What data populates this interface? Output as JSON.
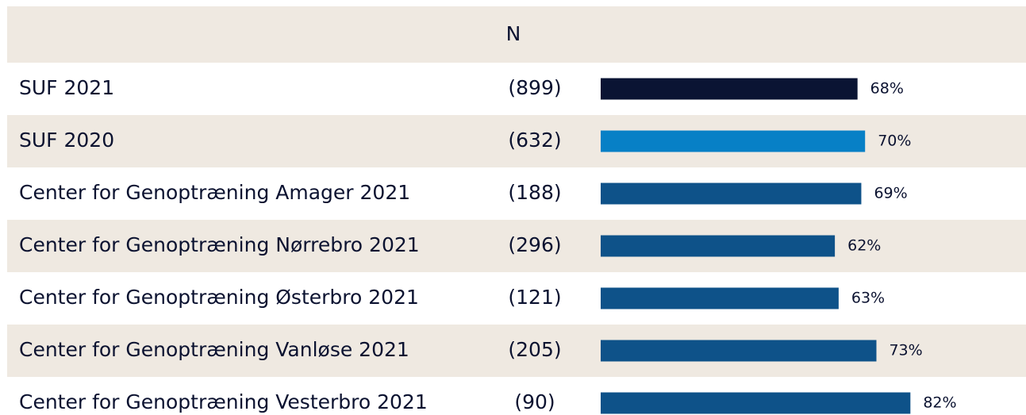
{
  "chart_data": {
    "type": "bar",
    "column_header": "N",
    "categories": [
      "SUF 2021",
      "SUF 2020",
      "Center for Genoptræning Amager 2021",
      "Center for Genoptræning Nørrebro 2021",
      "Center for Genoptræning Østerbro 2021",
      "Center for Genoptræning Vanløse 2021",
      "Center for Genoptræning Vesterbro 2021"
    ],
    "n": [
      "(899)",
      "(632)",
      "(188)",
      "(296)",
      "(121)",
      "(205)",
      "(90)"
    ],
    "values": [
      68,
      70,
      69,
      62,
      63,
      73,
      82
    ],
    "value_labels": [
      "68%",
      "70%",
      "69%",
      "62%",
      "63%",
      "73%",
      "82%"
    ],
    "colors": [
      "#0a1433",
      "#0780c6",
      "#0e5289",
      "#0e5289",
      "#0e5289",
      "#0e5289",
      "#0e5289"
    ],
    "xlim": [
      0,
      100
    ]
  }
}
